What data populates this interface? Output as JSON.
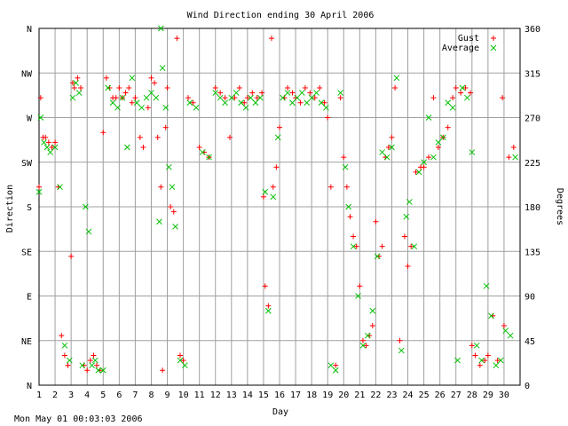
{
  "chart_data": {
    "type": "scatter",
    "title": "Wind Direction ending 30 April 2006",
    "xlabel": "Day",
    "ylabel": "Direction",
    "y2label": "Degrees",
    "xlim": [
      1,
      31
    ],
    "ylim": [
      0,
      360
    ],
    "x_ticks": [
      "1",
      "2",
      "3",
      "4",
      "5",
      "6",
      "7",
      "8",
      "9",
      "10",
      "11",
      "12",
      "13",
      "14",
      "15",
      "16",
      "17",
      "18",
      "19",
      "20",
      "21",
      "22",
      "23",
      "24",
      "25",
      "26",
      "27",
      "28",
      "29",
      "30"
    ],
    "y_ticks_left": [
      "N",
      "NE",
      "E",
      "SE",
      "S",
      "SW",
      "W",
      "NW",
      "N"
    ],
    "y_ticks_left_values": [
      0,
      45,
      90,
      135,
      180,
      225,
      270,
      315,
      360
    ],
    "y_ticks_right": [
      "0",
      "45",
      "90",
      "135",
      "180",
      "225",
      "270",
      "315",
      "360"
    ],
    "grid": true,
    "legend_position": "top-right",
    "series": [
      {
        "name": "Gust",
        "color": "#ff0000",
        "marker": "plus",
        "points": [
          [
            1.0,
            200
          ],
          [
            1.1,
            290
          ],
          [
            1.25,
            250
          ],
          [
            1.4,
            250
          ],
          [
            1.6,
            245
          ],
          [
            1.8,
            240
          ],
          [
            2.0,
            245
          ],
          [
            2.2,
            200
          ],
          [
            2.4,
            50
          ],
          [
            2.6,
            30
          ],
          [
            2.8,
            20
          ],
          [
            3.0,
            130
          ],
          [
            3.1,
            305
          ],
          [
            3.2,
            300
          ],
          [
            3.4,
            310
          ],
          [
            3.6,
            300
          ],
          [
            3.8,
            20
          ],
          [
            4.0,
            15
          ],
          [
            4.2,
            25
          ],
          [
            4.4,
            30
          ],
          [
            4.6,
            20
          ],
          [
            4.8,
            15
          ],
          [
            5.0,
            255
          ],
          [
            5.2,
            310
          ],
          [
            5.4,
            300
          ],
          [
            5.6,
            290
          ],
          [
            5.8,
            290
          ],
          [
            6.0,
            300
          ],
          [
            6.2,
            290
          ],
          [
            6.4,
            295
          ],
          [
            6.6,
            300
          ],
          [
            6.8,
            285
          ],
          [
            7.0,
            290
          ],
          [
            7.3,
            250
          ],
          [
            7.5,
            240
          ],
          [
            7.8,
            280
          ],
          [
            8.0,
            310
          ],
          [
            8.2,
            305
          ],
          [
            8.4,
            250
          ],
          [
            8.6,
            200
          ],
          [
            8.7,
            15
          ],
          [
            8.9,
            260
          ],
          [
            9.0,
            300
          ],
          [
            9.2,
            180
          ],
          [
            9.4,
            175
          ],
          [
            9.6,
            350
          ],
          [
            9.8,
            30
          ],
          [
            10.0,
            25
          ],
          [
            10.3,
            290
          ],
          [
            10.6,
            285
          ],
          [
            11.0,
            240
          ],
          [
            11.3,
            235
          ],
          [
            11.6,
            230
          ],
          [
            12.0,
            300
          ],
          [
            12.3,
            295
          ],
          [
            12.6,
            290
          ],
          [
            12.9,
            250
          ],
          [
            13.2,
            290
          ],
          [
            13.5,
            300
          ],
          [
            13.8,
            285
          ],
          [
            14.0,
            290
          ],
          [
            14.3,
            295
          ],
          [
            14.6,
            290
          ],
          [
            14.9,
            295
          ],
          [
            15.0,
            190
          ],
          [
            15.1,
            100
          ],
          [
            15.3,
            80
          ],
          [
            15.5,
            350
          ],
          [
            15.6,
            200
          ],
          [
            15.8,
            220
          ],
          [
            16.0,
            260
          ],
          [
            16.3,
            290
          ],
          [
            16.5,
            300
          ],
          [
            16.8,
            295
          ],
          [
            17.0,
            290
          ],
          [
            17.3,
            285
          ],
          [
            17.6,
            300
          ],
          [
            17.9,
            295
          ],
          [
            18.2,
            290
          ],
          [
            18.5,
            300
          ],
          [
            18.8,
            285
          ],
          [
            19.0,
            270
          ],
          [
            19.2,
            200
          ],
          [
            19.5,
            20
          ],
          [
            19.8,
            290
          ],
          [
            20.0,
            230
          ],
          [
            20.2,
            200
          ],
          [
            20.4,
            170
          ],
          [
            20.6,
            150
          ],
          [
            20.8,
            140
          ],
          [
            21.0,
            100
          ],
          [
            21.2,
            45
          ],
          [
            21.4,
            40
          ],
          [
            21.6,
            50
          ],
          [
            21.8,
            60
          ],
          [
            22.0,
            165
          ],
          [
            22.2,
            130
          ],
          [
            22.4,
            140
          ],
          [
            22.6,
            230
          ],
          [
            22.8,
            240
          ],
          [
            23.0,
            250
          ],
          [
            23.2,
            300
          ],
          [
            23.5,
            45
          ],
          [
            23.8,
            150
          ],
          [
            24.0,
            120
          ],
          [
            24.2,
            140
          ],
          [
            24.5,
            215
          ],
          [
            24.8,
            220
          ],
          [
            25.0,
            220
          ],
          [
            25.3,
            230
          ],
          [
            25.6,
            290
          ],
          [
            25.9,
            240
          ],
          [
            26.2,
            250
          ],
          [
            26.5,
            260
          ],
          [
            26.8,
            290
          ],
          [
            27.0,
            300
          ],
          [
            27.3,
            295
          ],
          [
            27.6,
            300
          ],
          [
            27.9,
            295
          ],
          [
            28.0,
            40
          ],
          [
            28.2,
            30
          ],
          [
            28.5,
            20
          ],
          [
            28.8,
            25
          ],
          [
            29.0,
            30
          ],
          [
            29.3,
            70
          ],
          [
            29.6,
            25
          ],
          [
            29.9,
            290
          ],
          [
            30.0,
            60
          ],
          [
            30.3,
            230
          ],
          [
            30.6,
            240
          ]
        ]
      },
      {
        "name": "Average",
        "color": "#00c000",
        "marker": "cross",
        "points": [
          [
            1.0,
            195
          ],
          [
            1.1,
            270
          ],
          [
            1.3,
            245
          ],
          [
            1.5,
            240
          ],
          [
            1.7,
            235
          ],
          [
            2.0,
            240
          ],
          [
            2.3,
            200
          ],
          [
            2.6,
            40
          ],
          [
            2.9,
            25
          ],
          [
            3.1,
            290
          ],
          [
            3.3,
            305
          ],
          [
            3.5,
            295
          ],
          [
            3.7,
            20
          ],
          [
            3.9,
            180
          ],
          [
            4.1,
            155
          ],
          [
            4.3,
            20
          ],
          [
            4.5,
            25
          ],
          [
            4.7,
            15
          ],
          [
            5.0,
            15
          ],
          [
            5.3,
            300
          ],
          [
            5.6,
            285
          ],
          [
            5.9,
            280
          ],
          [
            6.2,
            290
          ],
          [
            6.5,
            240
          ],
          [
            6.8,
            310
          ],
          [
            7.1,
            285
          ],
          [
            7.4,
            280
          ],
          [
            7.7,
            290
          ],
          [
            8.0,
            295
          ],
          [
            8.3,
            290
          ],
          [
            8.5,
            165
          ],
          [
            8.6,
            360
          ],
          [
            8.7,
            320
          ],
          [
            8.9,
            280
          ],
          [
            9.1,
            220
          ],
          [
            9.3,
            200
          ],
          [
            9.5,
            160
          ],
          [
            9.8,
            25
          ],
          [
            10.1,
            20
          ],
          [
            10.4,
            285
          ],
          [
            10.8,
            280
          ],
          [
            11.2,
            235
          ],
          [
            11.6,
            230
          ],
          [
            12.0,
            295
          ],
          [
            12.3,
            290
          ],
          [
            12.6,
            285
          ],
          [
            13.0,
            290
          ],
          [
            13.3,
            295
          ],
          [
            13.6,
            285
          ],
          [
            13.9,
            280
          ],
          [
            14.2,
            290
          ],
          [
            14.5,
            285
          ],
          [
            14.8,
            290
          ],
          [
            15.1,
            195
          ],
          [
            15.3,
            75
          ],
          [
            15.6,
            190
          ],
          [
            15.9,
            250
          ],
          [
            16.2,
            290
          ],
          [
            16.5,
            295
          ],
          [
            16.8,
            285
          ],
          [
            17.1,
            290
          ],
          [
            17.4,
            295
          ],
          [
            17.7,
            285
          ],
          [
            18.0,
            290
          ],
          [
            18.3,
            295
          ],
          [
            18.6,
            285
          ],
          [
            18.9,
            280
          ],
          [
            19.2,
            20
          ],
          [
            19.5,
            15
          ],
          [
            19.8,
            295
          ],
          [
            20.1,
            220
          ],
          [
            20.3,
            180
          ],
          [
            20.6,
            140
          ],
          [
            20.9,
            90
          ],
          [
            21.2,
            40
          ],
          [
            21.5,
            50
          ],
          [
            21.8,
            75
          ],
          [
            22.1,
            130
          ],
          [
            22.4,
            235
          ],
          [
            22.7,
            230
          ],
          [
            23.0,
            240
          ],
          [
            23.3,
            310
          ],
          [
            23.6,
            35
          ],
          [
            23.9,
            170
          ],
          [
            24.1,
            185
          ],
          [
            24.4,
            140
          ],
          [
            24.7,
            215
          ],
          [
            25.0,
            225
          ],
          [
            25.3,
            270
          ],
          [
            25.6,
            230
          ],
          [
            25.9,
            245
          ],
          [
            26.2,
            250
          ],
          [
            26.5,
            285
          ],
          [
            26.8,
            280
          ],
          [
            27.1,
            25
          ],
          [
            27.4,
            300
          ],
          [
            27.7,
            290
          ],
          [
            28.0,
            235
          ],
          [
            28.3,
            40
          ],
          [
            28.6,
            25
          ],
          [
            28.9,
            100
          ],
          [
            29.2,
            70
          ],
          [
            29.5,
            20
          ],
          [
            29.8,
            25
          ],
          [
            30.1,
            55
          ],
          [
            30.4,
            50
          ],
          [
            30.7,
            230
          ]
        ]
      }
    ]
  },
  "footer": {
    "timestamp": "Mon May 01 00:03:03 2006"
  }
}
